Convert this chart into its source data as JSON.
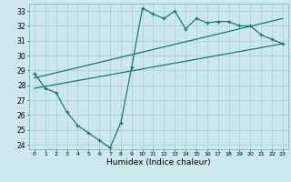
{
  "xlabel": "Humidex (Indice chaleur)",
  "xlim": [
    -0.5,
    23.5
  ],
  "ylim": [
    23.7,
    33.5
  ],
  "yticks": [
    24,
    25,
    26,
    27,
    28,
    29,
    30,
    31,
    32,
    33
  ],
  "xticks": [
    0,
    1,
    2,
    3,
    4,
    5,
    6,
    7,
    8,
    9,
    10,
    11,
    12,
    13,
    14,
    15,
    16,
    17,
    18,
    19,
    20,
    21,
    22,
    23
  ],
  "bg_color": "#cce8ec",
  "line_color": "#1a7a6e",
  "grid_color": "#aacdd4",
  "line1_x": [
    0,
    1,
    2,
    3,
    4,
    5,
    6,
    7,
    8,
    9,
    10,
    11,
    12,
    13,
    14,
    15,
    16,
    17,
    18,
    19,
    20,
    21,
    22,
    23
  ],
  "line1_y": [
    28.8,
    27.8,
    27.5,
    26.2,
    25.3,
    24.8,
    24.3,
    23.8,
    25.5,
    29.2,
    33.2,
    32.8,
    32.5,
    33.0,
    31.8,
    32.5,
    32.2,
    32.3,
    32.3,
    32.0,
    32.0,
    31.4,
    31.1,
    30.8
  ],
  "line2_x": [
    0,
    23
  ],
  "line2_y": [
    28.5,
    32.5
  ],
  "line3_x": [
    0,
    23
  ],
  "line3_y": [
    27.8,
    30.8
  ]
}
